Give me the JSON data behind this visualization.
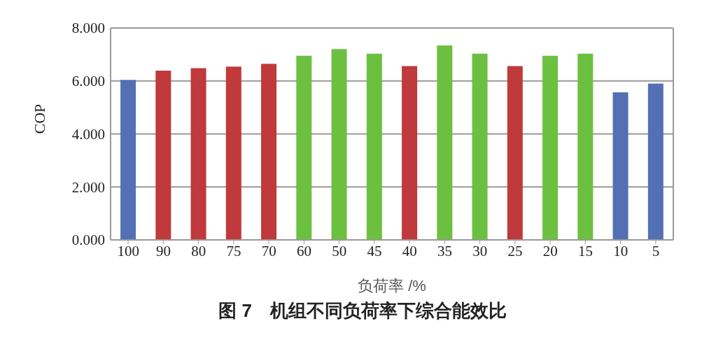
{
  "chart_data": {
    "type": "bar",
    "title": "图 7　机组不同负荷率下综合能效比",
    "xlabel": "负荷率 /%",
    "ylabel": "COP",
    "categories": [
      "100",
      "90",
      "80",
      "75",
      "70",
      "60",
      "50",
      "45",
      "40",
      "35",
      "30",
      "25",
      "20",
      "15",
      "10",
      "5"
    ],
    "values": [
      6.04,
      6.39,
      6.48,
      6.54,
      6.65,
      6.95,
      7.2,
      7.03,
      6.56,
      7.34,
      7.03,
      6.56,
      6.95,
      7.03,
      5.57,
      5.9
    ],
    "colors": [
      "#5470b4",
      "#c0393b",
      "#c0393b",
      "#c0393b",
      "#c0393b",
      "#6cc040",
      "#6cc040",
      "#6cc040",
      "#c0393b",
      "#6cc040",
      "#6cc040",
      "#c0393b",
      "#6cc040",
      "#6cc040",
      "#5470b4",
      "#5470b4"
    ],
    "ylim": [
      0,
      8
    ],
    "yticks": [
      {
        "value": 0,
        "label": "0.000"
      },
      {
        "value": 2,
        "label": "2.000"
      },
      {
        "value": 4,
        "label": "4.000"
      },
      {
        "value": 6,
        "label": "6.000"
      },
      {
        "value": 8,
        "label": "8.000"
      }
    ],
    "grid": "y"
  }
}
